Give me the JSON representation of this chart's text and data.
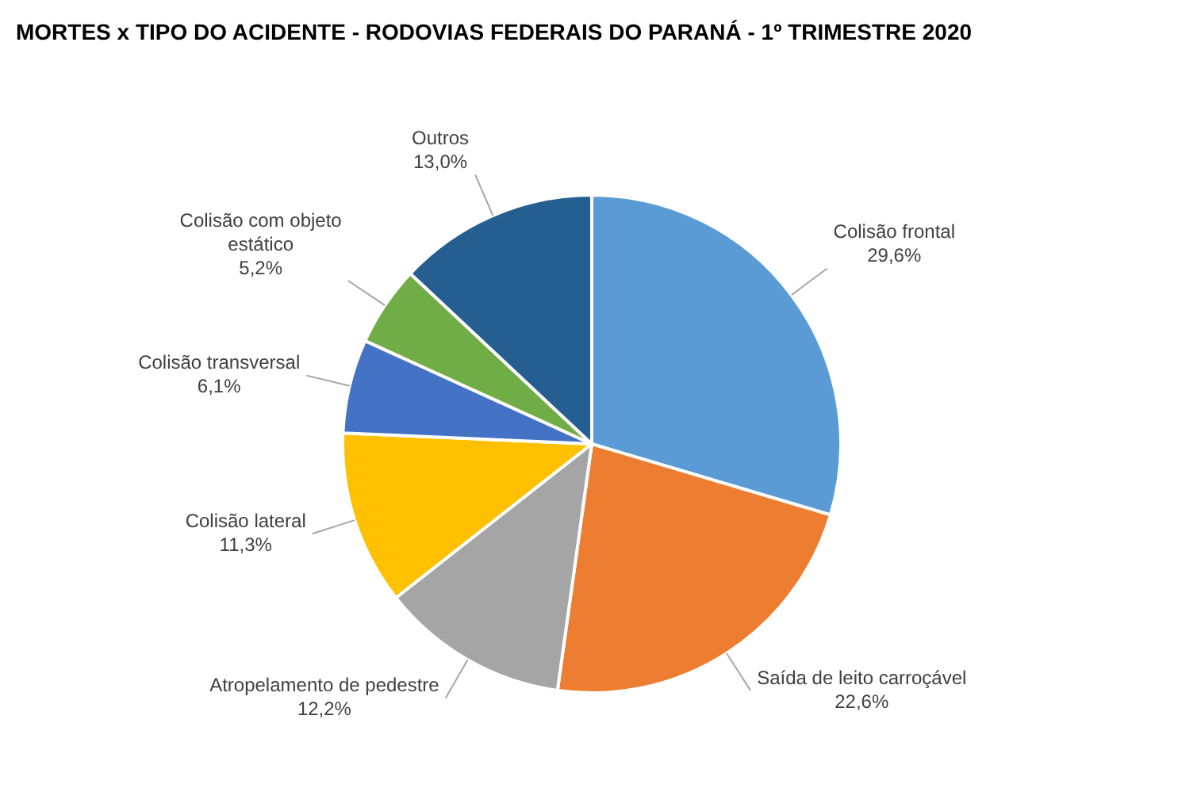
{
  "chart_data": {
    "type": "pie",
    "title": "MORTES x TIPO DO ACIDENTE - RODOVIAS FEDERAIS DO PARANÁ - 1º TRIMESTRE 2020",
    "categories": [
      "Colisão frontal",
      "Saída de leito carroçável",
      "Atropelamento de pedestre",
      "Colisão lateral",
      "Colisão transversal",
      "Colisão com objeto estático",
      "Outros"
    ],
    "values": [
      29.6,
      22.6,
      12.2,
      11.3,
      6.1,
      5.2,
      13.0
    ],
    "colors": [
      "#5b9bd5",
      "#ed7d31",
      "#a5a5a5",
      "#ffc000",
      "#4472c4",
      "#70ad47",
      "#255e91"
    ],
    "value_labels": [
      "29,6%",
      "22,6%",
      "12,2%",
      "11,3%",
      "6,1%",
      "5,2%",
      "13,0%"
    ],
    "legend": false
  }
}
